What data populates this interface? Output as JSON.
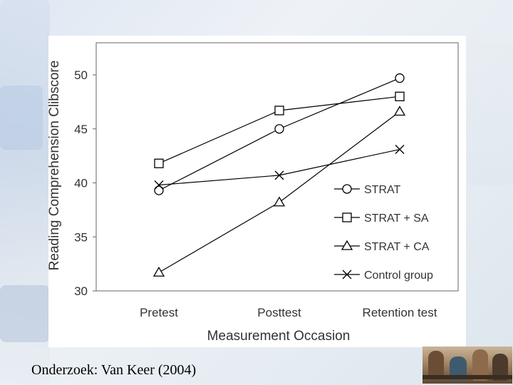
{
  "caption": "Onderzoek: Van Keer (2004)",
  "chart_data": {
    "type": "line",
    "title": "",
    "xlabel": "Measurement Occasion",
    "ylabel": "Reading Comprehension Clibscore",
    "categories": [
      "Pretest",
      "Posttest",
      "Retention test"
    ],
    "ylim": [
      30,
      50
    ],
    "yticks": [
      30,
      35,
      40,
      45,
      50
    ],
    "grid": false,
    "legend_position": "bottom-right",
    "series": [
      {
        "name": "STRAT",
        "marker": "circle",
        "values": [
          39.3,
          45.0,
          49.7
        ]
      },
      {
        "name": "STRAT + SA",
        "marker": "square",
        "values": [
          41.8,
          46.7,
          48.0
        ]
      },
      {
        "name": "STRAT + CA",
        "marker": "triangle",
        "values": [
          31.7,
          38.2,
          46.6
        ]
      },
      {
        "name": "Control group",
        "marker": "x",
        "values": [
          39.8,
          40.7,
          43.1
        ]
      }
    ],
    "colors": {
      "line": "#000000",
      "axis": "#666666",
      "text": "#333333"
    }
  }
}
